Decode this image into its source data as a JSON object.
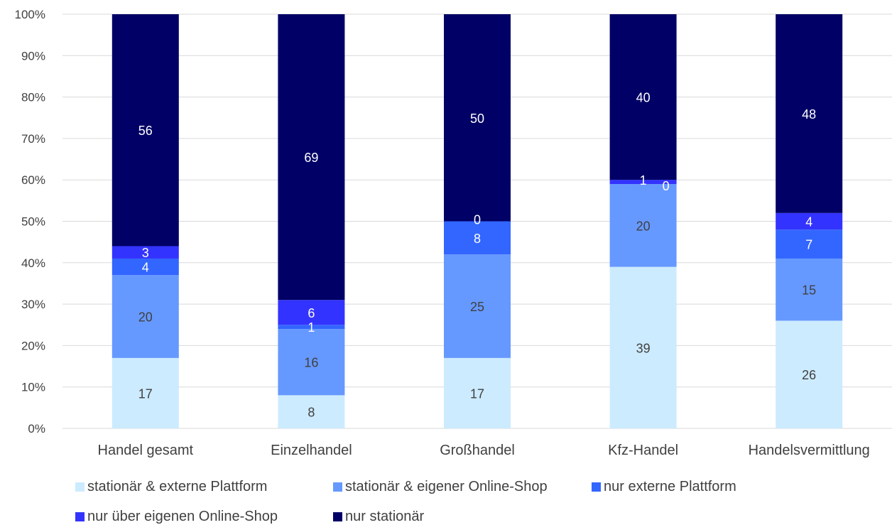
{
  "chart_data": {
    "type": "bar",
    "stacked": true,
    "percent": true,
    "categories": [
      "Handel gesamt",
      "Einzelhandel",
      "Großhandel",
      "Kfz-Handel",
      "Handelsvermittlung"
    ],
    "series": [
      {
        "name": "stationär & externe Plattform",
        "color": "#CCEBFF",
        "values": [
          17,
          8,
          17,
          39,
          26
        ],
        "labels": [
          "17",
          "8",
          "17",
          "39",
          "26"
        ],
        "label_color": "#404040"
      },
      {
        "name": "stationär & eigener Online-Shop",
        "color": "#6699FF",
        "values": [
          20,
          16,
          25,
          20,
          15
        ],
        "labels": [
          "20",
          "16",
          "25",
          "20",
          "15"
        ],
        "label_color": "#404040"
      },
      {
        "name": "nur externe Plattform",
        "color": "#3366FF",
        "values": [
          4,
          1,
          8,
          0,
          7
        ],
        "labels": [
          "4",
          "1",
          "8",
          "0",
          "7"
        ],
        "label_color": "#ffffff"
      },
      {
        "name": "nur über eigenen Online-Shop",
        "color": "#3333FF",
        "values": [
          3,
          6,
          0,
          1,
          4
        ],
        "labels": [
          "3",
          "6",
          "0",
          "1",
          "4"
        ],
        "label_color": "#ffffff"
      },
      {
        "name": "nur stationär",
        "color": "#000066",
        "values": [
          56,
          69,
          50,
          40,
          48
        ],
        "labels": [
          "56",
          "69",
          "50",
          "40",
          "48"
        ],
        "label_color": "#ffffff"
      }
    ],
    "ylim": [
      0,
      100
    ],
    "y_ticks": [
      "0%",
      "10%",
      "20%",
      "30%",
      "40%",
      "50%",
      "60%",
      "70%",
      "80%",
      "90%",
      "100%"
    ],
    "grid": true,
    "legend_position": "bottom",
    "title": "",
    "xlabel": "",
    "ylabel": ""
  }
}
